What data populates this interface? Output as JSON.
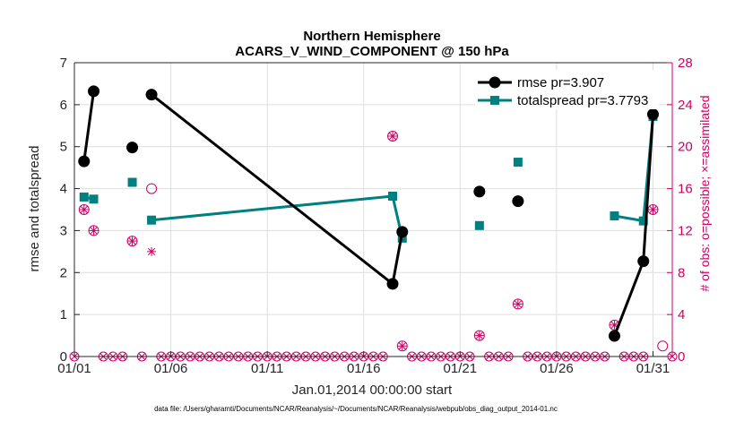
{
  "chart_data": {
    "type": "line",
    "title": "Northern Hemisphere",
    "subtitle": "ACARS_V_WIND_COMPONENT @ 150 hPa",
    "xlabel": "Jan.01,2014 00:00:00 start",
    "ylabel_left": "rmse and totalspread",
    "ylabel_right": "# of obs: o=possible; ×=assimilated",
    "footnote": "data file: /Users/gharamti/Documents/NCAR/Reanalysis/~/Documents/NCAR/Reanalysis/webpub/obs_diag_output_2014-01.nc",
    "xlim": [
      1,
      32
    ],
    "ylim_left": [
      0,
      7
    ],
    "ylim_right": [
      0,
      28
    ],
    "x_ticks": [
      1,
      6,
      11,
      16,
      21,
      26,
      31
    ],
    "x_tick_labels": [
      "01/01",
      "01/06",
      "01/11",
      "01/16",
      "01/21",
      "01/26",
      "01/31"
    ],
    "y_ticks_left": [
      "0",
      "1",
      "2",
      "3",
      "4",
      "5",
      "6",
      "7"
    ],
    "y_ticks_right": [
      "0",
      "4",
      "8",
      "12",
      "16",
      "20",
      "24",
      "28"
    ],
    "grid": true,
    "legend_position": "top-right",
    "colors": {
      "rmse": "#000000",
      "spread": "#008080",
      "obs": "#cc0066",
      "grid": "#dedede",
      "axis": "#262626"
    },
    "series": [
      {
        "name": "rmse pr=3.907",
        "marker": "circle",
        "x": [
          1.5,
          2.0,
          3.5,
          4.0,
          4.5,
          5.0,
          17.5,
          18.0,
          21.5,
          22.0,
          23.5,
          24.0,
          28.5,
          29.0,
          30.5,
          31.0
        ],
        "y": [
          4.65,
          6.32,
          null,
          4.98,
          null,
          6.24,
          1.73,
          2.97,
          null,
          3.93,
          null,
          3.7,
          null,
          0.49,
          2.27,
          5.77
        ]
      },
      {
        "name": "totalspread pr=3.7793",
        "marker": "square",
        "x": [
          1.5,
          2.0,
          3.5,
          4.0,
          4.5,
          5.0,
          17.5,
          18.0,
          21.5,
          22.0,
          23.5,
          24.0,
          28.5,
          29.0,
          30.5,
          31.0
        ],
        "y": [
          3.8,
          3.75,
          null,
          4.15,
          null,
          3.25,
          3.82,
          2.82,
          null,
          3.12,
          null,
          4.63,
          null,
          3.35,
          3.23,
          5.72
        ]
      }
    ],
    "obs_possible": {
      "x": [
        1.5,
        2.0,
        4.0,
        5.0,
        17.5,
        18.0,
        22.0,
        24.0,
        29.0,
        31.0,
        31.5
      ],
      "y": [
        14,
        12,
        11,
        16,
        21,
        1,
        2,
        5,
        3,
        14,
        1
      ]
    },
    "obs_assimilated": {
      "x": [
        1.5,
        2.0,
        4.0,
        5.0,
        17.5,
        18.0,
        22.0,
        24.0,
        29.0,
        31.0
      ],
      "y": [
        14,
        12,
        11,
        10,
        21,
        1,
        2,
        5,
        3,
        14
      ]
    },
    "zero_obs_days": [
      1.0,
      2.5,
      3.0,
      3.5,
      4.5,
      5.5,
      6.0,
      6.5,
      7.0,
      7.5,
      8.0,
      8.5,
      9.0,
      9.5,
      10.0,
      10.5,
      11.0,
      11.5,
      12.0,
      12.5,
      13.0,
      13.5,
      14.0,
      14.5,
      15.0,
      15.5,
      16.0,
      16.5,
      17.0,
      18.5,
      19.0,
      19.5,
      20.0,
      20.5,
      21.0,
      21.5,
      22.5,
      23.0,
      23.5,
      24.5,
      25.0,
      25.5,
      26.0,
      26.5,
      27.0,
      27.5,
      28.0,
      28.5,
      29.5,
      30.0,
      30.5,
      32.0
    ]
  }
}
